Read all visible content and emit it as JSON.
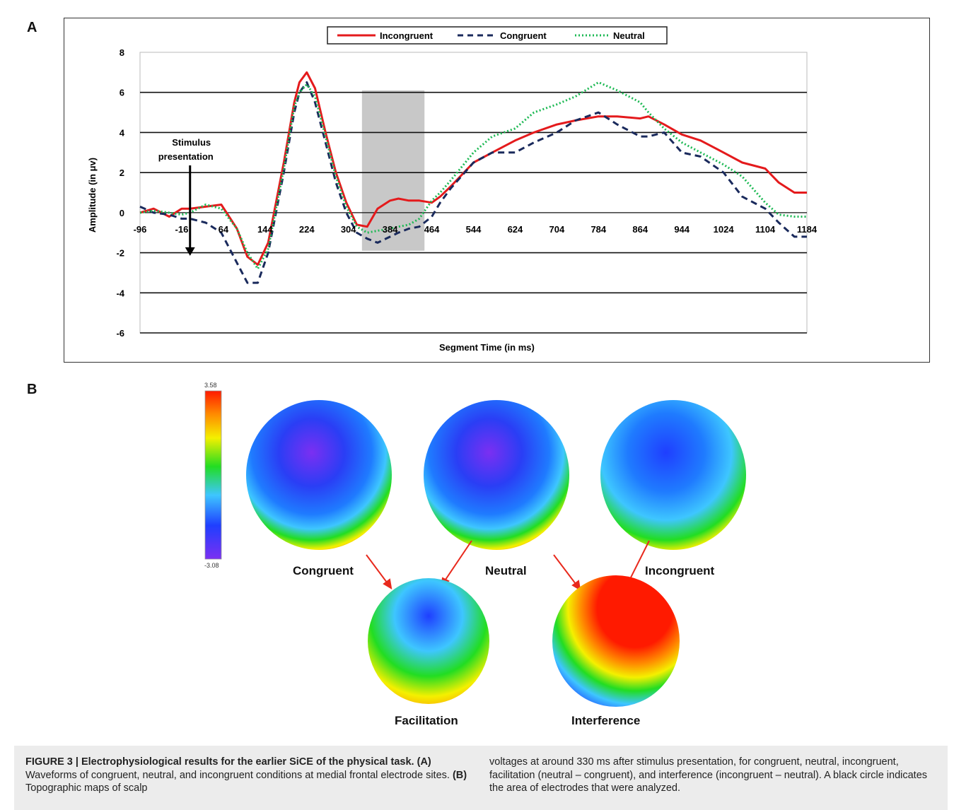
{
  "panel_a_label": "A",
  "panel_b_label": "B",
  "chart_data": {
    "type": "line",
    "xlabel": "Segment Time  (in  ms)",
    "ylabel": "Amplitude (in μv)",
    "x_ticks": [
      "-96",
      "-16",
      "64",
      "144",
      "224",
      "304",
      "384",
      "464",
      "544",
      "624",
      "704",
      "784",
      "864",
      "944",
      "1024",
      "1104",
      "1184"
    ],
    "y_ticks": [
      "8",
      "6",
      "4",
      "2",
      "0",
      "-2",
      "-4",
      "-6"
    ],
    "xlim": [
      -96,
      1184
    ],
    "ylim": [
      -6,
      8
    ],
    "grid": "horizontal",
    "legend_position": "top",
    "highlight_window": [
      330,
      450
    ],
    "annotation": {
      "line1": "Stimulus",
      "line2": "presentation",
      "x": 0
    },
    "series": [
      {
        "name": "Incongruent",
        "color": "#e41a1c",
        "style": "solid",
        "x": [
          -96,
          -70,
          -40,
          -16,
          0,
          30,
          60,
          90,
          110,
          130,
          150,
          180,
          200,
          210,
          224,
          240,
          260,
          280,
          300,
          320,
          340,
          360,
          384,
          400,
          420,
          440,
          464,
          480,
          500,
          544,
          580,
          624,
          660,
          704,
          740,
          784,
          820,
          864,
          880,
          910,
          944,
          980,
          1024,
          1060,
          1104,
          1130,
          1160,
          1184
        ],
        "y": [
          0,
          0.2,
          -0.2,
          0.2,
          0.2,
          0.3,
          0.4,
          -0.8,
          -2.2,
          -2.6,
          -1.5,
          2.5,
          5.5,
          6.5,
          7.0,
          6.2,
          4.0,
          2.0,
          0.5,
          -0.6,
          -0.7,
          0.2,
          0.6,
          0.7,
          0.6,
          0.6,
          0.5,
          0.8,
          1.3,
          2.5,
          3.0,
          3.6,
          4.0,
          4.4,
          4.6,
          4.8,
          4.8,
          4.7,
          4.8,
          4.4,
          3.9,
          3.6,
          3.0,
          2.5,
          2.2,
          1.5,
          1.0,
          1.0
        ]
      },
      {
        "name": "Congruent",
        "color": "#1a2a5c",
        "style": "dashed",
        "x": [
          -96,
          -70,
          -40,
          -16,
          0,
          30,
          60,
          90,
          110,
          130,
          150,
          180,
          200,
          210,
          224,
          240,
          260,
          280,
          300,
          320,
          340,
          360,
          384,
          400,
          420,
          440,
          464,
          480,
          500,
          544,
          580,
          624,
          660,
          704,
          740,
          784,
          820,
          864,
          880,
          910,
          944,
          980,
          1024,
          1060,
          1104,
          1130,
          1160,
          1184
        ],
        "y": [
          0.3,
          0,
          -0.1,
          -0.3,
          -0.3,
          -0.5,
          -1.0,
          -2.5,
          -3.5,
          -3.5,
          -2.0,
          2.0,
          5.0,
          6.0,
          6.5,
          5.5,
          3.5,
          1.5,
          0,
          -1.0,
          -1.3,
          -1.5,
          -1.2,
          -1.0,
          -0.8,
          -0.7,
          -0.2,
          0.5,
          1.2,
          2.5,
          3.0,
          3.0,
          3.5,
          4.0,
          4.6,
          5.0,
          4.4,
          3.8,
          3.8,
          4.0,
          3.0,
          2.8,
          2.0,
          0.8,
          0.2,
          -0.5,
          -1.2,
          -1.2
        ]
      },
      {
        "name": "Neutral",
        "color": "#1db954",
        "style": "dotted",
        "x": [
          -96,
          -70,
          -40,
          -16,
          0,
          30,
          60,
          90,
          110,
          130,
          150,
          180,
          200,
          210,
          224,
          240,
          260,
          280,
          300,
          320,
          340,
          360,
          384,
          400,
          420,
          440,
          464,
          480,
          500,
          544,
          580,
          624,
          660,
          704,
          740,
          784,
          820,
          864,
          880,
          910,
          944,
          980,
          1024,
          1060,
          1104,
          1130,
          1160,
          1184
        ],
        "y": [
          0,
          0.1,
          0,
          -0.1,
          0,
          0.4,
          0.2,
          -0.8,
          -2.0,
          -2.8,
          -1.8,
          2.2,
          5.3,
          6.0,
          6.4,
          5.8,
          3.8,
          1.8,
          0.3,
          -0.7,
          -1.0,
          -0.9,
          -0.8,
          -0.7,
          -0.6,
          -0.3,
          0.6,
          1.0,
          1.6,
          3.0,
          3.8,
          4.2,
          5.0,
          5.4,
          5.8,
          6.5,
          6.1,
          5.5,
          5.0,
          4.2,
          3.5,
          3.0,
          2.4,
          1.8,
          0.5,
          -0.1,
          -0.2,
          -0.2
        ]
      }
    ]
  },
  "topomaps": {
    "scale_max": "3.58",
    "scale_min": "-3.08",
    "labels": {
      "congruent": "Congruent",
      "neutral": "Neutral",
      "incongruent": "Incongruent",
      "facilitation": "Facilitation",
      "interference": "Interference"
    },
    "colors": {
      "low": "#7b2ff2",
      "blue": "#1f3fff",
      "cyan": "#3ec6ff",
      "green": "#22dd22",
      "yellow": "#f4f000",
      "orange": "#ff8c00",
      "red": "#ff1a00"
    }
  },
  "caption": {
    "left_bold": "FIGURE 3 | Electrophysiological results for the earlier SiCE of the physical task.",
    "left_a_label": "(A)",
    "left_a_text": "Waveforms of congruent, neutral, and incongruent conditions at medial frontal electrode sites.",
    "left_b_label": "(B)",
    "left_b_text": "Topographic maps of scalp",
    "right_text": "voltages at around 330 ms after stimulus presentation, for congruent, neutral, incongruent, facilitation (neutral – congruent), and interference (incongruent – neutral). A black circle indicates the area of electrodes that were analyzed."
  }
}
